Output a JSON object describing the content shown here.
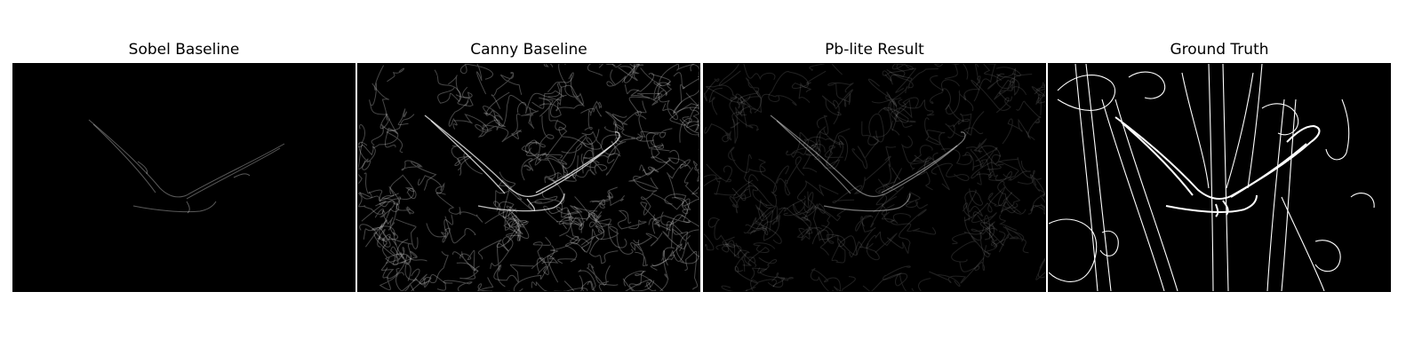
{
  "panels": [
    {
      "title": "Sobel Baseline"
    },
    {
      "title": "Canny Baseline"
    },
    {
      "title": "Pb-lite Result"
    },
    {
      "title": "Ground Truth"
    }
  ],
  "colors": {
    "background": "#ffffff",
    "image_background": "#000000",
    "edge_color": "#ffffff"
  }
}
